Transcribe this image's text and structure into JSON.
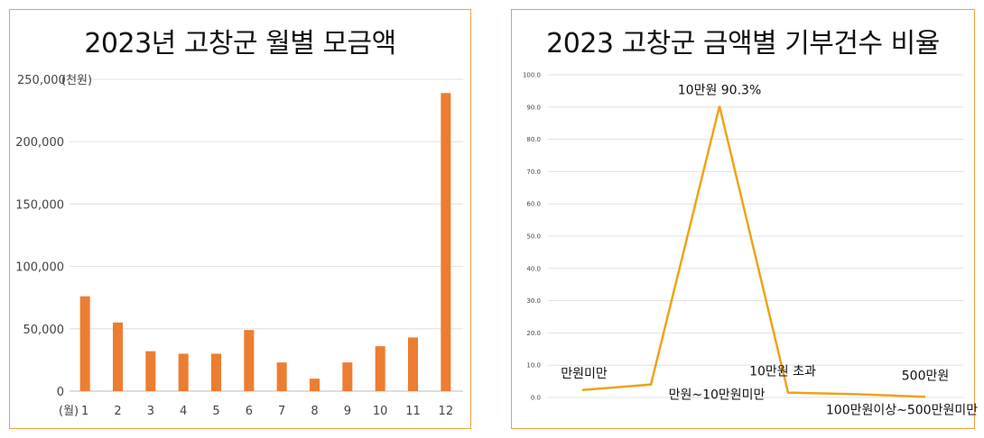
{
  "chart_data": [
    {
      "type": "bar",
      "title": "2023년 고창군 월별 모금액",
      "ylabel": "(천원)",
      "xlabel": "(월)",
      "categories": [
        "1",
        "2",
        "3",
        "4",
        "5",
        "6",
        "7",
        "8",
        "9",
        "10",
        "11",
        "12"
      ],
      "values": [
        76000,
        55000,
        32000,
        30000,
        30000,
        49000,
        23000,
        10000,
        23000,
        36000,
        43000,
        239000
      ],
      "ylim": [
        0,
        250000
      ],
      "yticks": [
        "0",
        "50,000",
        "100,000",
        "150,000",
        "200,000",
        "250,000"
      ],
      "yticks_values": [
        0,
        50000,
        100000,
        150000,
        200000,
        250000
      ],
      "grid": true,
      "colors": {
        "bar": "#ed7d31",
        "grid": "#e0e0e0"
      }
    },
    {
      "type": "line",
      "title": "2023 고창군 금액별 기부건수 비율",
      "categories": [
        "만원미만",
        "만원~10만원미만",
        "10만원",
        "10만원 초과",
        "100만원이상~500만원미만",
        "500만원"
      ],
      "values": [
        2.3,
        4.0,
        90.3,
        1.5,
        1.0,
        0.2
      ],
      "data_labels": [
        "만원미만",
        "만원~10만원미만",
        "10만원 90.3%",
        "10만원 초과",
        "100만원이상~500만원미만",
        "500만원"
      ],
      "ylim": [
        0,
        100
      ],
      "yticks": [
        "0.0",
        "10.0",
        "20.0",
        "30.0",
        "40.0",
        "50.0",
        "60.0",
        "70.0",
        "80.0",
        "90.0",
        "100.0"
      ],
      "yticks_values": [
        0,
        10,
        20,
        30,
        40,
        50,
        60,
        70,
        80,
        90,
        100
      ],
      "grid": true,
      "colors": {
        "line": "#f0a21a",
        "grid": "#e0e0e0"
      }
    }
  ]
}
